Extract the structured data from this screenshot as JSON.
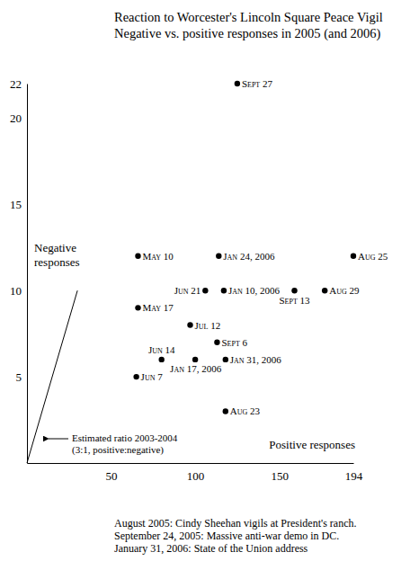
{
  "chart_data": {
    "type": "scatter",
    "title": "Reaction to Worcester's Lincoln Square Peace Vigil",
    "subtitle": "Negative vs. positive responses in 2005 (and 2006)",
    "x_label": "Positive responses",
    "y_label": "Negative responses",
    "xlim": [
      0,
      194
    ],
    "ylim": [
      0,
      22
    ],
    "xticks": [
      50,
      100,
      150,
      194
    ],
    "yticks": [
      5,
      10,
      15,
      20,
      22
    ],
    "color": "#000000",
    "marker": "circle",
    "labels": [
      "Sept 27",
      "May 10",
      "Jan 24, 2006",
      "Aug 25",
      "Jun 21",
      "Jan 10, 2006",
      "Sept 13",
      "Aug 29",
      "May 17",
      "Jul 12",
      "Sept 6",
      "Jun 14",
      "Jan 17, 2006",
      "Jan 31, 2006",
      "Jun 7",
      "Aug 23"
    ],
    "x": [
      125,
      66,
      114,
      194,
      106,
      117,
      159,
      177,
      66,
      97,
      113,
      80,
      100,
      118,
      65,
      118
    ],
    "values": [
      22,
      12,
      12,
      12,
      10,
      10,
      10,
      10,
      9,
      8,
      7,
      6,
      6,
      6,
      5,
      3
    ],
    "reference_line": {
      "x": [
        0,
        30
      ],
      "values": [
        0,
        10
      ],
      "label": [
        "Estimated ratio 2003-2004",
        "(3:1, positive:negative)"
      ]
    },
    "notes": [
      "August 2005: Cindy Sheehan vigils at President's ranch.",
      "September 24, 2005: Massive anti-war demo in DC.",
      "January 31, 2006: State of the Union address"
    ]
  }
}
